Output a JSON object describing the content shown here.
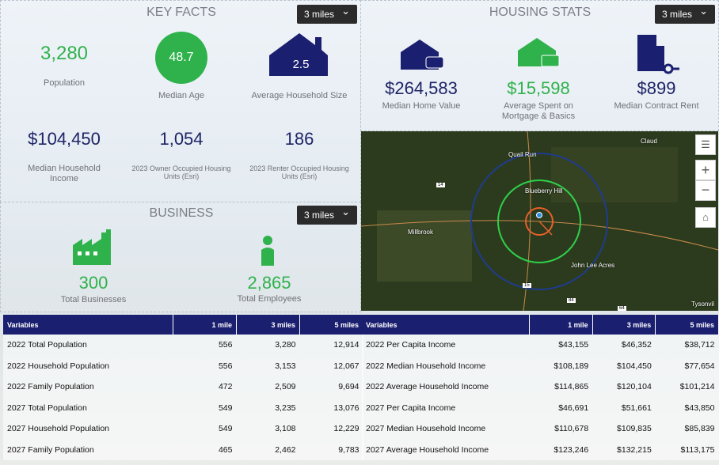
{
  "key_facts": {
    "title": "KEY FACTS",
    "dropdown": "3 miles",
    "stats": [
      {
        "value": "3,280",
        "label": "Population"
      },
      {
        "value": "48.7",
        "label": "Median Age"
      },
      {
        "value": "2.5",
        "label": "Average Household Size"
      },
      {
        "value": "$104,450",
        "label": "Median Household Income"
      },
      {
        "value": "1,054",
        "label": "2023 Owner Occupied Housing Units (Esri)"
      },
      {
        "value": "186",
        "label": "2023 Renter Occupied Housing Units (Esri)"
      }
    ]
  },
  "business": {
    "title": "BUSINESS",
    "dropdown": "3 miles",
    "stats": [
      {
        "value": "300",
        "label": "Total Businesses"
      },
      {
        "value": "2,865",
        "label": "Total Employees"
      }
    ]
  },
  "housing_stats": {
    "title": "HOUSING STATS",
    "dropdown": "3 miles",
    "stats": [
      {
        "value": "$264,583",
        "label": "Median Home Value"
      },
      {
        "value": "$15,598",
        "label": "Average Spent on Mortgage & Basics"
      },
      {
        "value": "$899",
        "label": "Median Contract Rent"
      }
    ]
  },
  "map": {
    "labels": [
      "Quail Run",
      "Claud",
      "Blueberry Hill",
      "Millbrook",
      "John Lee Acres",
      "Tysonvil",
      "14",
      "15",
      "84",
      "64"
    ]
  },
  "tables": [
    {
      "header": [
        "Variables",
        "1 mile",
        "3 miles",
        "5 miles"
      ],
      "rows": [
        [
          "2022 Total Population",
          "556",
          "3,280",
          "12,914"
        ],
        [
          "2022 Household Population",
          "556",
          "3,153",
          "12,067"
        ],
        [
          "2022 Family Population",
          "472",
          "2,509",
          "9,694"
        ],
        [
          "2027 Total Population",
          "549",
          "3,235",
          "13,076"
        ],
        [
          "2027 Household Population",
          "549",
          "3,108",
          "12,229"
        ],
        [
          "2027 Family Population",
          "465",
          "2,462",
          "9,783"
        ]
      ]
    },
    {
      "header": [
        "Variables",
        "1 mile",
        "3 miles",
        "5 miles"
      ],
      "rows": [
        [
          "2022 Per Capita Income",
          "$43,155",
          "$46,352",
          "$38,712"
        ],
        [
          "2022 Median Household Income",
          "$108,189",
          "$104,450",
          "$77,654"
        ],
        [
          "2022 Average Household Income",
          "$114,865",
          "$120,104",
          "$101,214"
        ],
        [
          "2027 Per Capita Income",
          "$46,691",
          "$51,661",
          "$43,850"
        ],
        [
          "2027 Median Household Income",
          "$110,678",
          "$109,835",
          "$85,839"
        ],
        [
          "2027 Average Household Income",
          "$123,246",
          "$132,215",
          "$113,175"
        ]
      ]
    }
  ]
}
